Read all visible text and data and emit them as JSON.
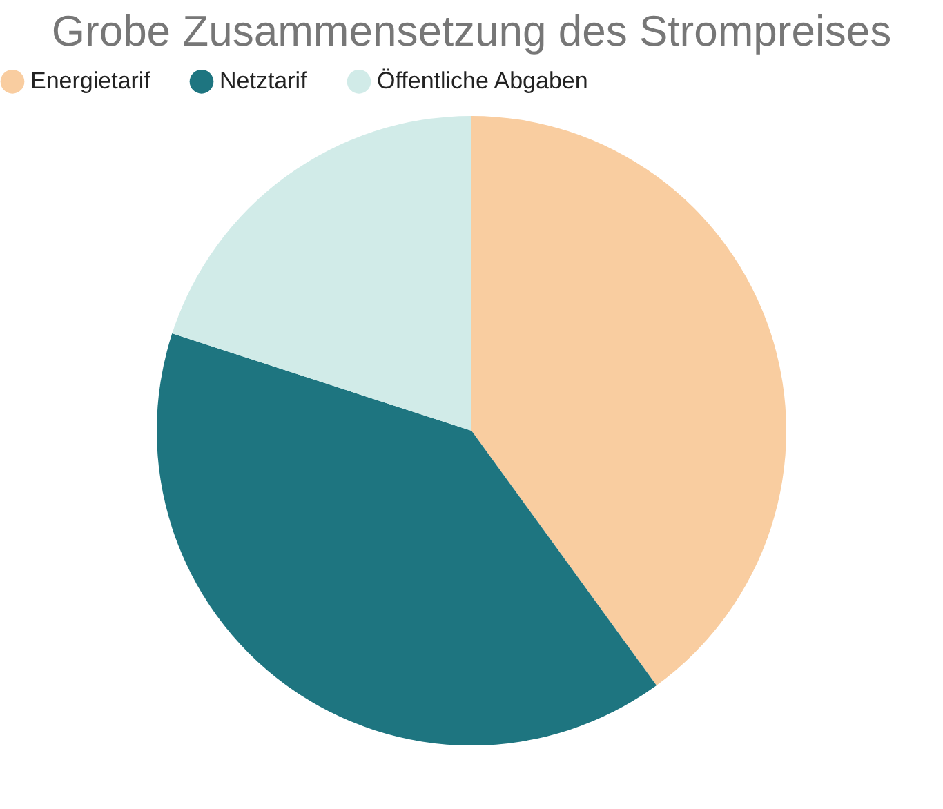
{
  "chart_data": {
    "type": "pie",
    "title": "Grobe Zusammensetzung des Strompreises",
    "categories": [
      "Energietarif",
      "Netztarif",
      "Öffentliche Abgaben"
    ],
    "values": [
      40,
      40,
      20
    ],
    "colors": [
      "#f9cda0",
      "#1e7580",
      "#d1ebe8"
    ],
    "legend": "top"
  }
}
